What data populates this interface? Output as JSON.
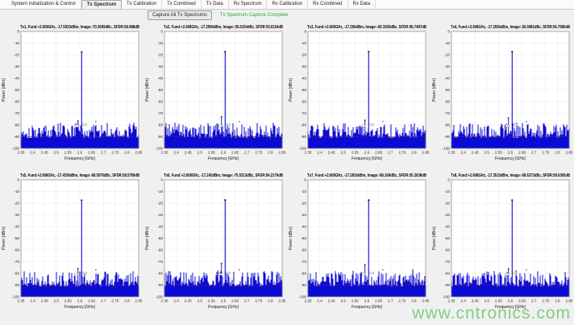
{
  "tabs": [
    {
      "label": "System Initialization & Control",
      "active": false
    },
    {
      "label": "Tx Spectrum",
      "active": true
    },
    {
      "label": "Tx Calibration",
      "active": false
    },
    {
      "label": "Tx Combined",
      "active": false
    },
    {
      "label": "Tx Data",
      "active": false
    },
    {
      "label": "Rx Spectrum",
      "active": false
    },
    {
      "label": "Rx Calibration",
      "active": false
    },
    {
      "label": "Rx Combined",
      "active": false
    },
    {
      "label": "Rx Data",
      "active": false
    }
  ],
  "toolbar": {
    "capture_button": "Capture All Tx Spectrums",
    "status": "Tx Spectrum Capture Complete"
  },
  "watermark": "www.cntronics.com",
  "colors": {
    "trace": "#0b0bd6",
    "trace_base": "#0000b4",
    "noise_ref_line": "#8b1a1a",
    "grid": "#e8e8e8",
    "axis_border": "#8a8a8a",
    "status_green": "#3c9e3c"
  },
  "chart_data": [
    {
      "type": "line",
      "tx": "Tx1",
      "title": "Tx1, Fund:+2.608GHz, -17.5933dBm, Image:-70.3699dBc, SFDR:58.988dB",
      "fund_ghz": 2.608,
      "fund_dbm": -17.5933,
      "image_dbc": -70.3699,
      "sfdr_db": 58.988,
      "xlabel": "Frequency [GHz]",
      "ylabel": "Power [dBm]",
      "xlim": [
        2.35,
        2.85
      ],
      "ylim": [
        -100,
        0
      ],
      "xticks": [
        "2.35",
        "2.4",
        "2.45",
        "2.5",
        "2.55",
        "2.6",
        "2.65",
        "2.7",
        "2.75",
        "2.8",
        "2.85"
      ],
      "yticks": [
        0,
        -10,
        -20,
        -30,
        -40,
        -50,
        -60,
        -70,
        -80,
        -90,
        -100
      ],
      "noise_floor_dbm": -88,
      "grid": true
    },
    {
      "type": "line",
      "tx": "Tx2",
      "title": "Tx2, Fund:+2.608GHz, -17.2996dBm, Image:-55.6154dBc, SFDR:55.6154dB",
      "fund_ghz": 2.608,
      "fund_dbm": -17.2996,
      "image_dbc": -55.6154,
      "sfdr_db": 55.6154,
      "xlabel": "Frequency [GHz]",
      "ylabel": "Power [dBm]",
      "xlim": [
        2.35,
        2.85
      ],
      "ylim": [
        -100,
        0
      ],
      "xticks": [
        "2.35",
        "2.4",
        "2.45",
        "2.5",
        "2.55",
        "2.6",
        "2.65",
        "2.7",
        "2.75",
        "2.8",
        "2.85"
      ],
      "yticks": [
        0,
        -10,
        -20,
        -30,
        -40,
        -50,
        -60,
        -70,
        -80,
        -90,
        -100
      ],
      "noise_floor_dbm": -88,
      "grid": true
    },
    {
      "type": "line",
      "tx": "Tx3",
      "title": "Tx3, Fund:+2.608GHz, -17.266dBm, Image:-69.3265dBc, SFDR:58.7497dB",
      "fund_ghz": 2.608,
      "fund_dbm": -17.266,
      "image_dbc": -69.3265,
      "sfdr_db": 58.7497,
      "xlabel": "Frequency [GHz]",
      "ylabel": "Power [dBm]",
      "xlim": [
        2.35,
        2.85
      ],
      "ylim": [
        -100,
        0
      ],
      "xticks": [
        "2.35",
        "2.4",
        "2.45",
        "2.5",
        "2.55",
        "2.6",
        "2.65",
        "2.7",
        "2.75",
        "2.8",
        "2.85"
      ],
      "yticks": [
        0,
        -10,
        -20,
        -30,
        -40,
        -50,
        -60,
        -70,
        -80,
        -90,
        -100
      ],
      "noise_floor_dbm": -88,
      "grid": true
    },
    {
      "type": "line",
      "tx": "Tx4",
      "title": "Tx4, Fund:+2.608GHz, -17.2556dBm, Image:-56.5981dBc, SFDR:56.7586dB",
      "fund_ghz": 2.608,
      "fund_dbm": -17.2556,
      "image_dbc": -56.5981,
      "sfdr_db": 56.7586,
      "xlabel": "Frequency [GHz]",
      "ylabel": "Power [dBm]",
      "xlim": [
        2.35,
        2.85
      ],
      "ylim": [
        -100,
        0
      ],
      "xticks": [
        "2.35",
        "2.4",
        "2.45",
        "2.5",
        "2.55",
        "2.6",
        "2.65",
        "2.7",
        "2.75",
        "2.8",
        "2.85"
      ],
      "yticks": [
        0,
        -10,
        -20,
        -30,
        -40,
        -50,
        -60,
        -70,
        -80,
        -90,
        -100
      ],
      "noise_floor_dbm": -88,
      "grid": true
    },
    {
      "type": "line",
      "tx": "Tx5",
      "title": "Tx5, Fund:+2.608GHz, -17.4336dBm, Image:-68.5576dBc, SFDR:58.5789dB",
      "fund_ghz": 2.608,
      "fund_dbm": -17.4336,
      "image_dbc": -68.5576,
      "sfdr_db": 58.5789,
      "xlabel": "Frequency [GHz]",
      "ylabel": "Power [dBm]",
      "xlim": [
        2.35,
        2.85
      ],
      "ylim": [
        -100,
        0
      ],
      "xticks": [
        "2.35",
        "2.4",
        "2.45",
        "2.5",
        "2.55",
        "2.6",
        "2.65",
        "2.7",
        "2.75",
        "2.8",
        "2.85"
      ],
      "yticks": [
        0,
        -10,
        -20,
        -30,
        -40,
        -50,
        -60,
        -70,
        -80,
        -90,
        -100
      ],
      "noise_floor_dbm": -88,
      "grid": true
    },
    {
      "type": "line",
      "tx": "Tx6",
      "title": "Tx6, Fund:+2.608GHz, -17.242dBm, Image:-70.5313dBc, SFDR:54.2176dB",
      "fund_ghz": 2.608,
      "fund_dbm": -17.242,
      "image_dbc": -70.5313,
      "sfdr_db": 54.2176,
      "xlabel": "Frequency [GHz]",
      "ylabel": "Power [dBm]",
      "xlim": [
        2.35,
        2.85
      ],
      "ylim": [
        -100,
        0
      ],
      "xticks": [
        "2.35",
        "2.4",
        "2.45",
        "2.5",
        "2.55",
        "2.6",
        "2.65",
        "2.7",
        "2.75",
        "2.8",
        "2.85"
      ],
      "yticks": [
        0,
        -10,
        -20,
        -30,
        -40,
        -50,
        -60,
        -70,
        -80,
        -90,
        -100
      ],
      "noise_floor_dbm": -88,
      "grid": true
    },
    {
      "type": "line",
      "tx": "Tx7",
      "title": "Tx7, Fund:+2.608GHz, -17.2816dBm, Image:-68.169dBc, SFDR:55.2638dB",
      "fund_ghz": 2.608,
      "fund_dbm": -17.2816,
      "image_dbc": -68.169,
      "sfdr_db": 55.2638,
      "xlabel": "Frequency [GHz]",
      "ylabel": "Power [dBm]",
      "xlim": [
        2.35,
        2.85
      ],
      "ylim": [
        -100,
        0
      ],
      "xticks": [
        "2.35",
        "2.4",
        "2.45",
        "2.5",
        "2.55",
        "2.6",
        "2.65",
        "2.7",
        "2.75",
        "2.8",
        "2.85"
      ],
      "yticks": [
        0,
        -10,
        -20,
        -30,
        -40,
        -50,
        -60,
        -70,
        -80,
        -90,
        -100
      ],
      "noise_floor_dbm": -88,
      "grid": true
    },
    {
      "type": "line",
      "tx": "Tx8",
      "title": "Tx8, Fund:+2.608GHz, -17.3515dBm, Image:-68.6373dBc, SFDR:58.6365dB",
      "fund_ghz": 2.608,
      "fund_dbm": -17.3515,
      "image_dbc": -68.6373,
      "sfdr_db": 58.6365,
      "xlabel": "Frequency [GHz]",
      "ylabel": "Power [dBm]",
      "xlim": [
        2.35,
        2.85
      ],
      "ylim": [
        -100,
        0
      ],
      "xticks": [
        "2.35",
        "2.4",
        "2.45",
        "2.5",
        "2.55",
        "2.6",
        "2.65",
        "2.7",
        "2.75",
        "2.8",
        "2.85"
      ],
      "yticks": [
        0,
        -10,
        -20,
        -30,
        -40,
        -50,
        -60,
        -70,
        -80,
        -90,
        -100
      ],
      "noise_floor_dbm": -88,
      "grid": true
    }
  ]
}
